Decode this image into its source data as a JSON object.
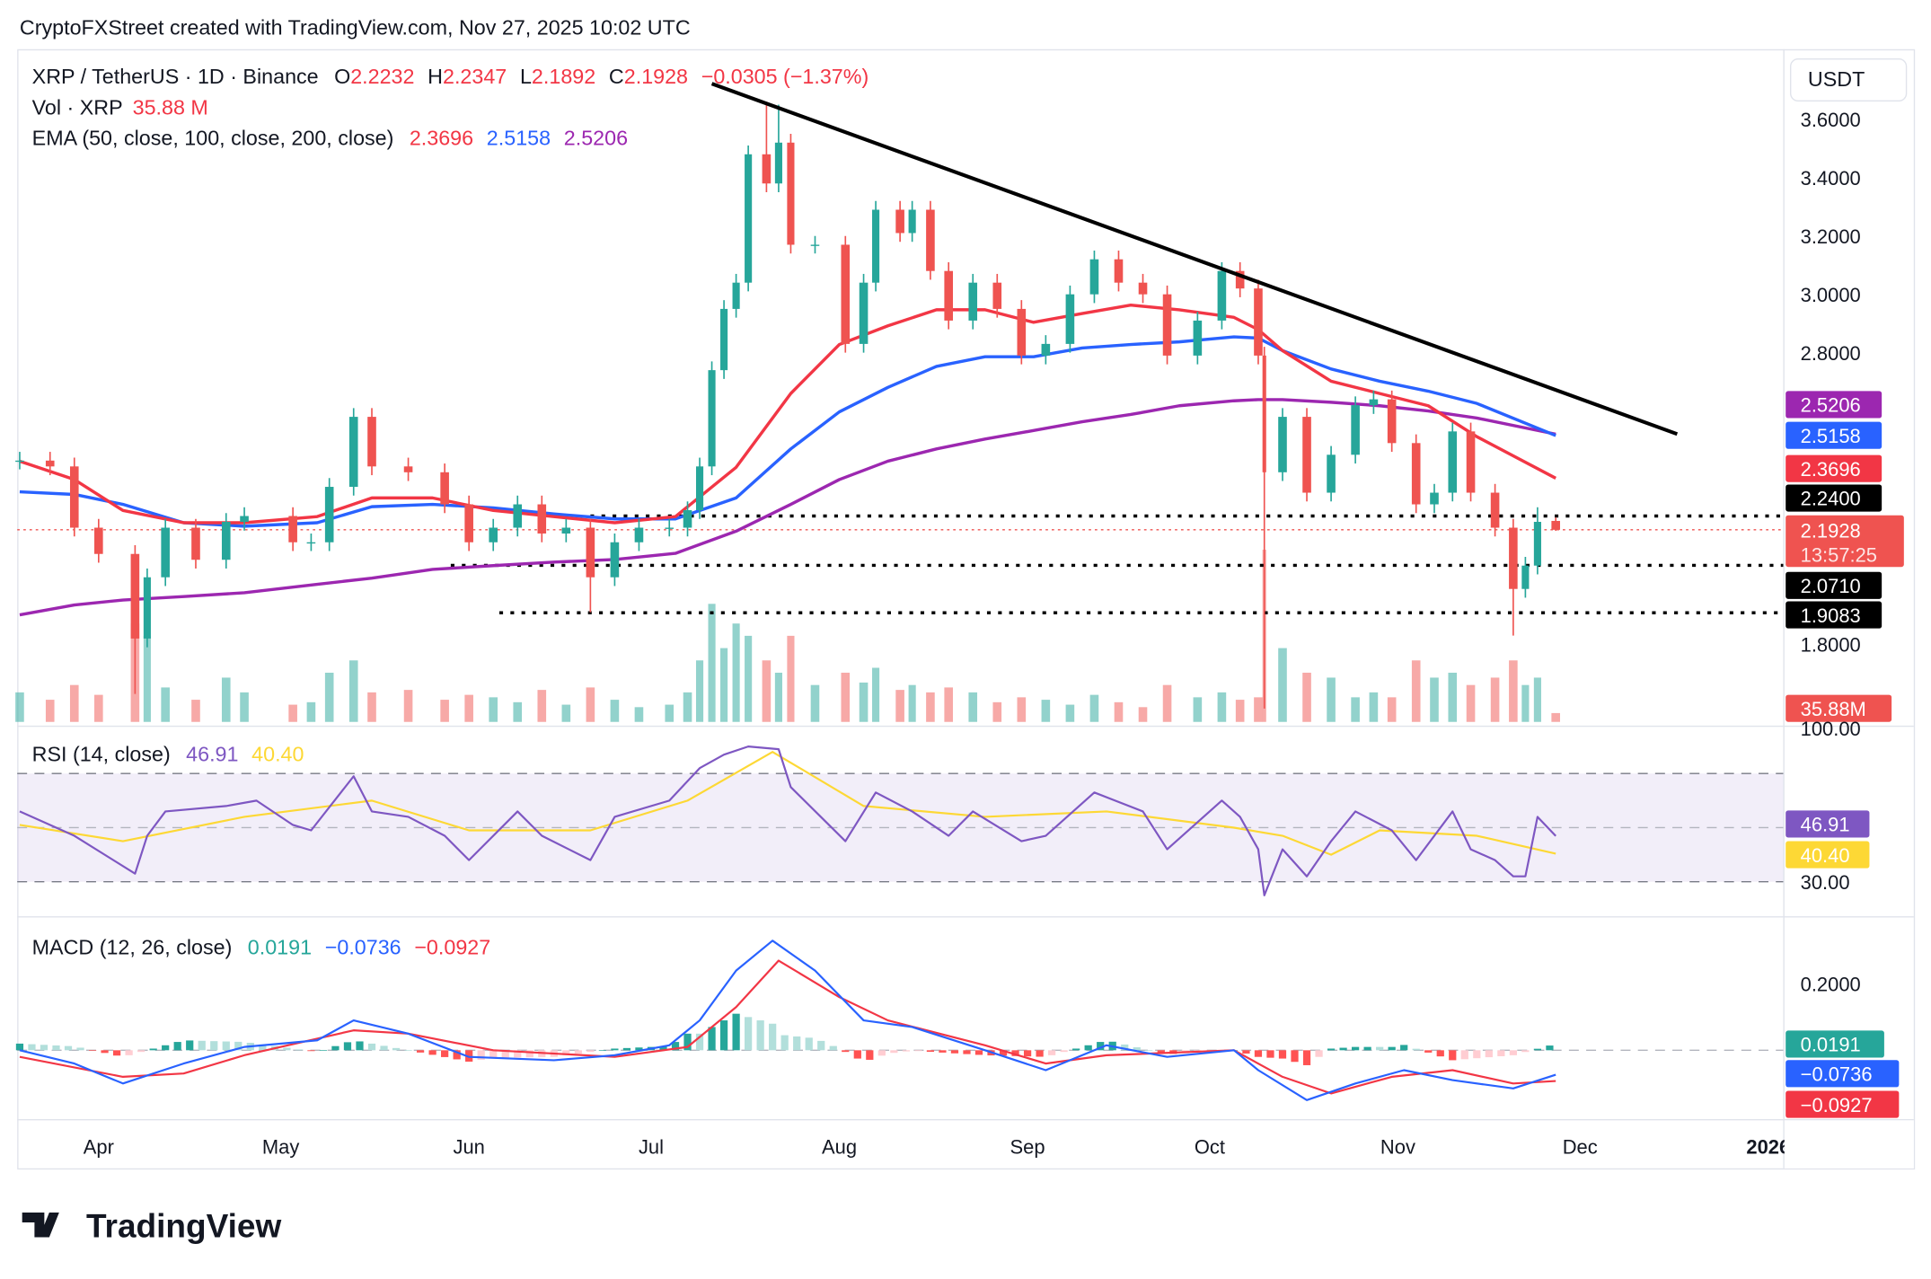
{
  "caption": "CryptoFXStreet created with TradingView.com, Nov 27, 2025 10:02 UTC",
  "legend": {
    "symbol": "XRP / TetherUS · 1D · Binance",
    "o_label": "O",
    "o": "2.2232",
    "h_label": "H",
    "h": "2.2347",
    "l_label": "L",
    "l": "2.1892",
    "c_label": "C",
    "c": "2.1928",
    "change": "−0.0305 (−1.37%)",
    "vol_label": "Vol · XRP",
    "vol": "35.88 M",
    "ema_label": "EMA (50, close, 100, close, 200, close)",
    "ema50": "2.3696",
    "ema100": "2.5158",
    "ema200": "2.5206",
    "rsi_label": "RSI (14, close)",
    "rsi": "46.91",
    "rsi_ma": "40.40",
    "macd_label": "MACD (12, 26, close)",
    "macd_hist": "0.0191",
    "macd": "−0.0736",
    "macd_signal": "−0.0927"
  },
  "currency": "USDT",
  "colors": {
    "up": "#26a69a",
    "down": "#ef5350",
    "ema50": "#f23645",
    "ema100": "#2962ff",
    "ema200": "#9c27b0",
    "rsi": "#7e57c2",
    "rsi_ma": "#fdd835",
    "macd": "#2962ff",
    "signal": "#f23645"
  },
  "axis_labels": {
    "ema200": "2.5206",
    "ema100": "2.5158",
    "ema50": "2.3696",
    "level1": "2.2400",
    "price": "2.1928",
    "countdown": "13:57:25",
    "level2": "2.0710",
    "level3": "1.9083",
    "volume": "35.88M",
    "rsi": "46.91",
    "rsi_ma": "40.40",
    "hist": "0.0191",
    "macd": "−0.0736",
    "signal": "−0.0927"
  },
  "chart_data": {
    "type": "candlestick",
    "price_ticks": [
      "3.6000",
      "3.4000",
      "3.2000",
      "3.0000",
      "2.8000",
      "1.8000"
    ],
    "ylim": [
      1.55,
      3.78
    ],
    "rsi_ticks": [
      "100.00",
      "30.00"
    ],
    "macd_ticks": [
      "0.2000"
    ],
    "x_ticks": [
      {
        "label": "Apr",
        "date": "2025-04-01"
      },
      {
        "label": "May",
        "date": "2025-05-01"
      },
      {
        "label": "Jun",
        "date": "2025-06-01"
      },
      {
        "label": "Jul",
        "date": "2025-07-01"
      },
      {
        "label": "Aug",
        "date": "2025-08-01"
      },
      {
        "label": "Sep",
        "date": "2025-09-01"
      },
      {
        "label": "Oct",
        "date": "2025-10-01"
      },
      {
        "label": "Nov",
        "date": "2025-11-01"
      },
      {
        "label": "Dec",
        "date": "2025-12-01"
      },
      {
        "label": "2026",
        "date": "2026-01-01"
      }
    ],
    "candles": [
      [
        "2025-03-19",
        2.43,
        120
      ],
      [
        "2025-03-24",
        2.41,
        90
      ],
      [
        "2025-03-28",
        2.2,
        150
      ],
      [
        "2025-04-01",
        2.11,
        110
      ],
      [
        "2025-04-07",
        1.82,
        400
      ],
      [
        "2025-04-09",
        2.03,
        350
      ],
      [
        "2025-04-12",
        2.2,
        140
      ],
      [
        "2025-04-17",
        2.09,
        90
      ],
      [
        "2025-04-22",
        2.22,
        180
      ],
      [
        "2025-04-25",
        2.24,
        120
      ],
      [
        "2025-05-03",
        2.15,
        70
      ],
      [
        "2025-05-06",
        2.15,
        80
      ],
      [
        "2025-05-09",
        2.34,
        200
      ],
      [
        "2025-05-13",
        2.58,
        250
      ],
      [
        "2025-05-16",
        2.41,
        120
      ],
      [
        "2025-05-22",
        2.39,
        130
      ],
      [
        "2025-05-28",
        2.28,
        90
      ],
      [
        "2025-06-01",
        2.15,
        110
      ],
      [
        "2025-06-05",
        2.2,
        100
      ],
      [
        "2025-06-09",
        2.28,
        80
      ],
      [
        "2025-06-13",
        2.18,
        130
      ],
      [
        "2025-06-17",
        2.2,
        70
      ],
      [
        "2025-06-21",
        2.03,
        140
      ],
      [
        "2025-06-25",
        2.15,
        90
      ],
      [
        "2025-06-29",
        2.2,
        60
      ],
      [
        "2025-07-04",
        2.2,
        70
      ],
      [
        "2025-07-07",
        2.26,
        120
      ],
      [
        "2025-07-09",
        2.41,
        250
      ],
      [
        "2025-07-11",
        2.74,
        480
      ],
      [
        "2025-07-13",
        2.95,
        300
      ],
      [
        "2025-07-15",
        3.04,
        400
      ],
      [
        "2025-07-17",
        3.48,
        350
      ],
      [
        "2025-07-20",
        3.38,
        250
      ],
      [
        "2025-07-22",
        3.52,
        200
      ],
      [
        "2025-07-24",
        3.17,
        350
      ],
      [
        "2025-07-28",
        3.17,
        150
      ],
      [
        "2025-08-02",
        2.83,
        200
      ],
      [
        "2025-08-05",
        3.04,
        160
      ],
      [
        "2025-08-07",
        3.29,
        220
      ],
      [
        "2025-08-11",
        3.21,
        130
      ],
      [
        "2025-08-13",
        3.29,
        150
      ],
      [
        "2025-08-16",
        3.08,
        120
      ],
      [
        "2025-08-19",
        2.91,
        140
      ],
      [
        "2025-08-23",
        3.04,
        120
      ],
      [
        "2025-08-27",
        2.95,
        80
      ],
      [
        "2025-08-31",
        2.79,
        100
      ],
      [
        "2025-09-04",
        2.83,
        90
      ],
      [
        "2025-09-08",
        3.0,
        70
      ],
      [
        "2025-09-12",
        3.12,
        110
      ],
      [
        "2025-09-16",
        3.04,
        80
      ],
      [
        "2025-09-20",
        3.0,
        60
      ],
      [
        "2025-09-24",
        2.79,
        150
      ],
      [
        "2025-09-29",
        2.91,
        100
      ],
      [
        "2025-10-03",
        3.08,
        120
      ],
      [
        "2025-10-06",
        3.02,
        90
      ],
      [
        "2025-10-09",
        2.79,
        100
      ],
      [
        "2025-10-10",
        2.39,
        700
      ],
      [
        "2025-10-13",
        2.58,
        300
      ],
      [
        "2025-10-17",
        2.32,
        200
      ],
      [
        "2025-10-21",
        2.45,
        180
      ],
      [
        "2025-10-25",
        2.62,
        100
      ],
      [
        "2025-10-28",
        2.64,
        120
      ],
      [
        "2025-10-31",
        2.49,
        100
      ],
      [
        "2025-11-04",
        2.28,
        250
      ],
      [
        "2025-11-07",
        2.32,
        180
      ],
      [
        "2025-11-10",
        2.53,
        200
      ],
      [
        "2025-11-13",
        2.32,
        150
      ],
      [
        "2025-11-17",
        2.2,
        180
      ],
      [
        "2025-11-20",
        1.99,
        250
      ],
      [
        "2025-11-22",
        2.07,
        150
      ],
      [
        "2025-11-24",
        2.22,
        180
      ],
      [
        "2025-11-27",
        2.1928,
        35.88
      ]
    ],
    "wicks": {
      "2025-04-07": {
        "low": 1.63
      },
      "2025-06-21": {
        "low": 1.91
      },
      "2025-07-20": {
        "high": 3.66
      },
      "2025-07-22": {
        "high": 3.65
      },
      "2025-10-10": {
        "low": 1.58
      },
      "2025-11-20": {
        "low": 1.83
      },
      "2025-11-24": {
        "high": 2.27
      },
      "2025-11-27": {
        "open": 2.2232,
        "high": 2.2347,
        "low": 2.1892
      }
    },
    "ema_dates": [
      "2025-03-19",
      "2025-03-28",
      "2025-04-05",
      "2025-04-15",
      "2025-04-25",
      "2025-05-07",
      "2025-05-16",
      "2025-05-26",
      "2025-06-05",
      "2025-06-15",
      "2025-06-25",
      "2025-07-05",
      "2025-07-15",
      "2025-07-24",
      "2025-08-01",
      "2025-08-09",
      "2025-08-17",
      "2025-08-25",
      "2025-09-02",
      "2025-09-10",
      "2025-09-18",
      "2025-09-26",
      "2025-10-05",
      "2025-10-09",
      "2025-10-13",
      "2025-10-21",
      "2025-10-29",
      "2025-11-06",
      "2025-11-14",
      "2025-11-27"
    ],
    "ema50": [
      2.428,
      2.365,
      2.259,
      2.217,
      2.217,
      2.238,
      2.302,
      2.302,
      2.259,
      2.238,
      2.217,
      2.238,
      2.407,
      2.66,
      2.828,
      2.892,
      2.947,
      2.947,
      2.904,
      2.934,
      2.963,
      2.947,
      2.921,
      2.879,
      2.807,
      2.702,
      2.66,
      2.618,
      2.512,
      2.3696
    ],
    "ema100": [
      2.323,
      2.314,
      2.28,
      2.217,
      2.205,
      2.217,
      2.272,
      2.28,
      2.268,
      2.247,
      2.23,
      2.23,
      2.302,
      2.47,
      2.597,
      2.681,
      2.753,
      2.786,
      2.786,
      2.816,
      2.828,
      2.837,
      2.854,
      2.85,
      2.807,
      2.744,
      2.702,
      2.668,
      2.626,
      2.5158
    ],
    "ema200": [
      1.901,
      1.935,
      1.952,
      1.964,
      1.977,
      2.006,
      2.027,
      2.057,
      2.07,
      2.082,
      2.091,
      2.112,
      2.188,
      2.28,
      2.365,
      2.428,
      2.47,
      2.504,
      2.533,
      2.563,
      2.588,
      2.618,
      2.635,
      2.639,
      2.639,
      2.63,
      2.618,
      2.6,
      2.576,
      2.5206
    ],
    "trendline": [
      [
        "2025-07-11",
        3.722
      ],
      [
        "2025-12-17",
        2.521
      ]
    ],
    "levels": [
      {
        "value": 2.24,
        "from": "2025-06-21"
      },
      {
        "value": 2.071,
        "from": "2025-05-29"
      },
      {
        "value": 1.9083,
        "from": "2025-06-06"
      }
    ],
    "rsi": [
      [
        "2025-03-19",
        56
      ],
      [
        "2025-03-28",
        47
      ],
      [
        "2025-04-07",
        33
      ],
      [
        "2025-04-09",
        47
      ],
      [
        "2025-04-12",
        56
      ],
      [
        "2025-04-22",
        58
      ],
      [
        "2025-04-27",
        60
      ],
      [
        "2025-05-03",
        51
      ],
      [
        "2025-05-06",
        49
      ],
      [
        "2025-05-13",
        69
      ],
      [
        "2025-05-16",
        56
      ],
      [
        "2025-05-22",
        54
      ],
      [
        "2025-05-28",
        47
      ],
      [
        "2025-06-01",
        38
      ],
      [
        "2025-06-09",
        56
      ],
      [
        "2025-06-13",
        47
      ],
      [
        "2025-06-21",
        38
      ],
      [
        "2025-06-25",
        54
      ],
      [
        "2025-07-04",
        60
      ],
      [
        "2025-07-09",
        72
      ],
      [
        "2025-07-13",
        77
      ],
      [
        "2025-07-17",
        80
      ],
      [
        "2025-07-22",
        79
      ],
      [
        "2025-07-24",
        65
      ],
      [
        "2025-08-02",
        45
      ],
      [
        "2025-08-07",
        63
      ],
      [
        "2025-08-13",
        56
      ],
      [
        "2025-08-19",
        47
      ],
      [
        "2025-08-23",
        56
      ],
      [
        "2025-08-31",
        45
      ],
      [
        "2025-09-04",
        47
      ],
      [
        "2025-09-12",
        63
      ],
      [
        "2025-09-20",
        56
      ],
      [
        "2025-09-24",
        42
      ],
      [
        "2025-10-03",
        60
      ],
      [
        "2025-10-06",
        54
      ],
      [
        "2025-10-09",
        42
      ],
      [
        "2025-10-10",
        25
      ],
      [
        "2025-10-13",
        42
      ],
      [
        "2025-10-17",
        32
      ],
      [
        "2025-10-21",
        45
      ],
      [
        "2025-10-25",
        56
      ],
      [
        "2025-10-31",
        49
      ],
      [
        "2025-11-04",
        38
      ],
      [
        "2025-11-10",
        56
      ],
      [
        "2025-11-13",
        42
      ],
      [
        "2025-11-17",
        38
      ],
      [
        "2025-11-20",
        32
      ],
      [
        "2025-11-22",
        32
      ],
      [
        "2025-11-24",
        54
      ],
      [
        "2025-11-27",
        46.91
      ]
    ],
    "rsi_ma": [
      [
        "2025-03-19",
        51
      ],
      [
        "2025-04-05",
        45
      ],
      [
        "2025-04-25",
        54
      ],
      [
        "2025-05-16",
        60
      ],
      [
        "2025-06-01",
        49
      ],
      [
        "2025-06-21",
        49
      ],
      [
        "2025-07-07",
        60
      ],
      [
        "2025-07-21",
        78
      ],
      [
        "2025-08-05",
        58
      ],
      [
        "2025-08-25",
        54
      ],
      [
        "2025-09-14",
        56
      ],
      [
        "2025-10-05",
        50
      ],
      [
        "2025-10-13",
        47
      ],
      [
        "2025-10-21",
        40
      ],
      [
        "2025-10-29",
        49
      ],
      [
        "2025-11-14",
        47
      ],
      [
        "2025-11-27",
        40.4
      ]
    ],
    "rsi_bands": [
      70,
      50,
      30
    ],
    "macd": [
      [
        "2025-03-19",
        0
      ],
      [
        "2025-03-28",
        -0.04
      ],
      [
        "2025-04-05",
        -0.1
      ],
      [
        "2025-04-15",
        -0.04
      ],
      [
        "2025-04-25",
        0.01
      ],
      [
        "2025-05-07",
        0.03
      ],
      [
        "2025-05-13",
        0.09
      ],
      [
        "2025-05-22",
        0.05
      ],
      [
        "2025-06-01",
        -0.02
      ],
      [
        "2025-06-15",
        -0.03
      ],
      [
        "2025-06-25",
        -0.015
      ],
      [
        "2025-07-04",
        0.015
      ],
      [
        "2025-07-09",
        0.09
      ],
      [
        "2025-07-15",
        0.24
      ],
      [
        "2025-07-21",
        0.33
      ],
      [
        "2025-07-28",
        0.24
      ],
      [
        "2025-08-05",
        0.09
      ],
      [
        "2025-08-13",
        0.07
      ],
      [
        "2025-08-25",
        0
      ],
      [
        "2025-09-04",
        -0.06
      ],
      [
        "2025-09-14",
        0.015
      ],
      [
        "2025-09-24",
        -0.02
      ],
      [
        "2025-10-05",
        0
      ],
      [
        "2025-10-09",
        -0.06
      ],
      [
        "2025-10-17",
        -0.15
      ],
      [
        "2025-10-25",
        -0.1
      ],
      [
        "2025-11-02",
        -0.06
      ],
      [
        "2025-11-10",
        -0.09
      ],
      [
        "2025-11-20",
        -0.115
      ],
      [
        "2025-11-27",
        -0.0736
      ]
    ],
    "signal": [
      [
        "2025-03-19",
        -0.02
      ],
      [
        "2025-04-05",
        -0.08
      ],
      [
        "2025-04-15",
        -0.07
      ],
      [
        "2025-04-25",
        -0.015
      ],
      [
        "2025-05-13",
        0.06
      ],
      [
        "2025-05-22",
        0.05
      ],
      [
        "2025-06-05",
        0
      ],
      [
        "2025-06-25",
        -0.02
      ],
      [
        "2025-07-07",
        0.01
      ],
      [
        "2025-07-15",
        0.13
      ],
      [
        "2025-07-22",
        0.27
      ],
      [
        "2025-08-01",
        0.16
      ],
      [
        "2025-08-09",
        0.09
      ],
      [
        "2025-08-25",
        0.015
      ],
      [
        "2025-09-04",
        -0.04
      ],
      [
        "2025-09-14",
        -0.015
      ],
      [
        "2025-10-05",
        0
      ],
      [
        "2025-10-13",
        -0.08
      ],
      [
        "2025-10-21",
        -0.13
      ],
      [
        "2025-10-31",
        -0.08
      ],
      [
        "2025-11-10",
        -0.06
      ],
      [
        "2025-11-20",
        -0.1
      ],
      [
        "2025-11-27",
        -0.0927
      ]
    ]
  },
  "brand": "TradingView"
}
